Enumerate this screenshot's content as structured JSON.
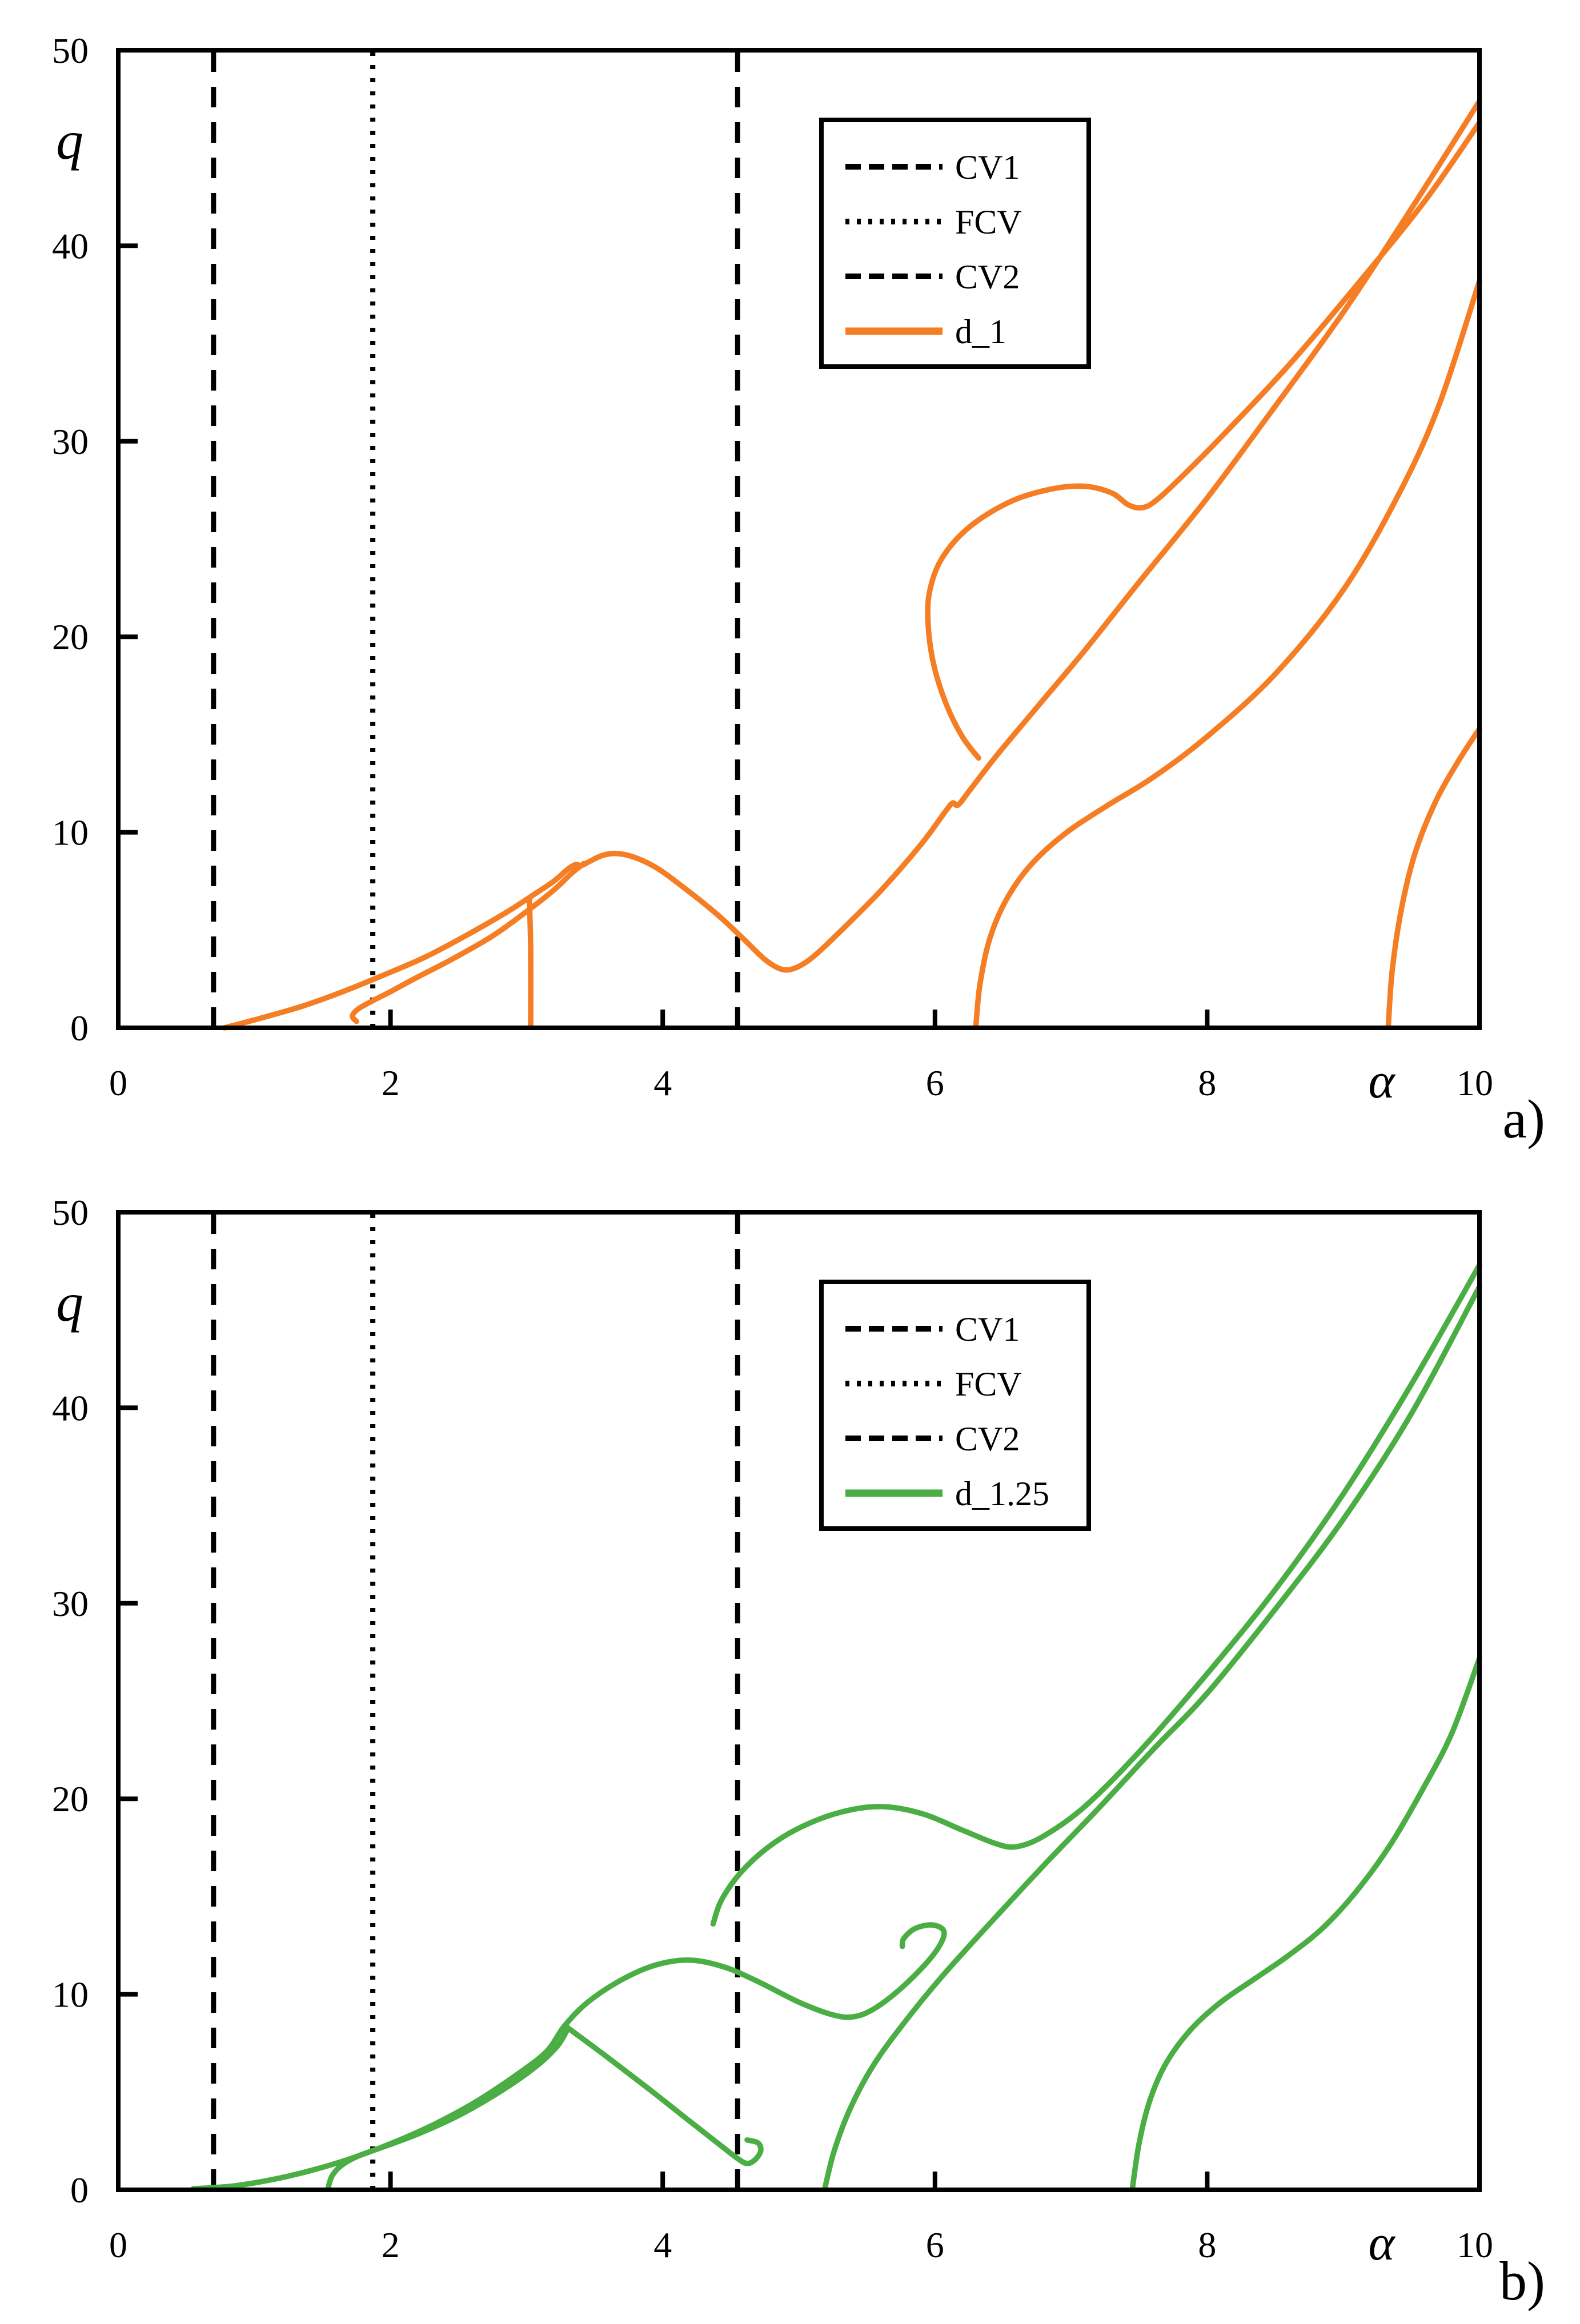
{
  "figure": {
    "background": "#ffffff",
    "axis_color": "#000000",
    "panels": [
      "a)",
      "b)"
    ]
  },
  "chart_data": [
    {
      "id": "panel-a",
      "type": "line",
      "panel_label": "a)",
      "xlabel": "α",
      "ylabel": "q",
      "xlim": [
        0,
        10
      ],
      "ylim": [
        0,
        50
      ],
      "xticks": [
        0,
        2,
        4,
        6,
        8,
        10
      ],
      "yticks": [
        0,
        10,
        20,
        30,
        40,
        50
      ],
      "grid": false,
      "legend_position": "upper center",
      "series_name": "d_1",
      "series_color": "#F57E25",
      "legend": [
        {
          "label": "CV1",
          "style": "dashed",
          "color": "#000000"
        },
        {
          "label": "FCV",
          "style": "dotted",
          "color": "#000000"
        },
        {
          "label": "CV2",
          "style": "dashed",
          "color": "#000000"
        },
        {
          "label": "d_1",
          "style": "solid",
          "color": "#F57E25"
        }
      ],
      "vertical_lines": [
        {
          "name": "CV1",
          "x": 0.7,
          "style": "dashed"
        },
        {
          "name": "FCV",
          "x": 1.87,
          "style": "dotted"
        },
        {
          "name": "CV2",
          "x": 4.55,
          "style": "dashed"
        }
      ],
      "branches": [
        {
          "name": "main-resonance-curve",
          "points": [
            [
              0.78,
              0
            ],
            [
              1.05,
              0.5
            ],
            [
              1.35,
              1.1
            ],
            [
              1.65,
              1.85
            ],
            [
              1.95,
              2.7
            ],
            [
              2.25,
              3.6
            ],
            [
              2.55,
              4.7
            ],
            [
              2.85,
              5.9
            ],
            [
              3.05,
              6.8
            ],
            [
              3.2,
              7.5
            ],
            [
              3.3,
              8.1
            ],
            [
              3.36,
              8.35
            ],
            [
              3.4,
              8.3
            ],
            [
              3.46,
              8.5
            ],
            [
              3.55,
              8.8
            ],
            [
              3.65,
              8.92
            ],
            [
              3.78,
              8.75
            ],
            [
              3.95,
              8.2
            ],
            [
              4.15,
              7.2
            ],
            [
              4.4,
              5.8
            ],
            [
              4.6,
              4.5
            ],
            [
              4.75,
              3.5
            ],
            [
              4.87,
              3.0
            ],
            [
              4.97,
              3.05
            ],
            [
              5.1,
              3.6
            ],
            [
              5.3,
              4.9
            ],
            [
              5.6,
              7.0
            ],
            [
              5.9,
              9.4
            ],
            [
              6.08,
              11.1
            ],
            [
              6.13,
              11.5
            ],
            [
              6.17,
              11.4
            ],
            [
              6.25,
              12.1
            ],
            [
              6.45,
              13.9
            ],
            [
              6.75,
              16.4
            ],
            [
              7.1,
              19.3
            ],
            [
              7.5,
              22.8
            ],
            [
              8.0,
              27.1
            ],
            [
              8.5,
              31.8
            ],
            [
              9.0,
              36.6
            ],
            [
              9.5,
              41.9
            ],
            [
              10,
              47.4
            ]
          ]
        },
        {
          "name": "lower-hook-strand",
          "points": [
            [
              1.75,
              0.33
            ],
            [
              1.72,
              0.6
            ],
            [
              1.76,
              0.95
            ],
            [
              1.86,
              1.35
            ],
            [
              2.0,
              1.85
            ],
            [
              2.2,
              2.6
            ],
            [
              2.45,
              3.5
            ],
            [
              2.75,
              4.7
            ],
            [
              3.0,
              5.95
            ],
            [
              3.2,
              7.05
            ],
            [
              3.33,
              7.9
            ],
            [
              3.42,
              8.4
            ]
          ]
        },
        {
          "name": "vertical-drop",
          "points": [
            [
              3.02,
              6.6
            ],
            [
              3.03,
              4.0
            ],
            [
              3.03,
              0.05
            ]
          ]
        },
        {
          "name": "bubble-loop-upper-diagonal",
          "points": [
            [
              6.32,
              13.8
            ],
            [
              6.2,
              14.9
            ],
            [
              6.08,
              16.6
            ],
            [
              5.99,
              18.6
            ],
            [
              5.95,
              20.6
            ],
            [
              5.96,
              22.3
            ],
            [
              6.05,
              24.0
            ],
            [
              6.25,
              25.6
            ],
            [
              6.55,
              26.9
            ],
            [
              6.85,
              27.55
            ],
            [
              7.1,
              27.7
            ],
            [
              7.3,
              27.35
            ],
            [
              7.42,
              26.75
            ],
            [
              7.52,
              26.6
            ],
            [
              7.62,
              26.95
            ],
            [
              7.8,
              28.1
            ],
            [
              8.1,
              30.2
            ],
            [
              8.6,
              33.9
            ],
            [
              9.1,
              38.0
            ],
            [
              9.6,
              42.3
            ],
            [
              10,
              46.3
            ]
          ]
        },
        {
          "name": "right-lower-branch",
          "points": [
            [
              6.3,
              0.05
            ],
            [
              6.33,
              2.2
            ],
            [
              6.4,
              4.5
            ],
            [
              6.52,
              6.5
            ],
            [
              6.7,
              8.3
            ],
            [
              6.95,
              9.9
            ],
            [
              7.25,
              11.3
            ],
            [
              7.6,
              12.8
            ],
            [
              8.0,
              14.9
            ],
            [
              8.5,
              18.1
            ],
            [
              9.0,
              22.4
            ],
            [
              9.4,
              27.2
            ],
            [
              9.7,
              31.8
            ],
            [
              10,
              38.2
            ]
          ]
        },
        {
          "name": "far-right-branch",
          "points": [
            [
              9.33,
              0.05
            ],
            [
              9.36,
              3.0
            ],
            [
              9.43,
              6.2
            ],
            [
              9.53,
              9.0
            ],
            [
              9.68,
              11.6
            ],
            [
              9.85,
              13.7
            ],
            [
              10,
              15.3
            ]
          ]
        }
      ]
    },
    {
      "id": "panel-b",
      "type": "line",
      "panel_label": "b)",
      "xlabel": "α",
      "ylabel": "q",
      "xlim": [
        0,
        10
      ],
      "ylim": [
        0,
        50
      ],
      "xticks": [
        0,
        2,
        4,
        6,
        8,
        10
      ],
      "yticks": [
        0,
        10,
        20,
        30,
        40,
        50
      ],
      "grid": false,
      "legend_position": "upper center",
      "series_name": "d_1.25",
      "series_color": "#4BAE44",
      "legend": [
        {
          "label": "CV1",
          "style": "dashed",
          "color": "#000000"
        },
        {
          "label": "FCV",
          "style": "dotted",
          "color": "#000000"
        },
        {
          "label": "CV2",
          "style": "dashed",
          "color": "#000000"
        },
        {
          "label": "d_1.25",
          "style": "solid",
          "color": "#4BAE44"
        }
      ],
      "vertical_lines": [
        {
          "name": "CV1",
          "x": 0.7,
          "style": "dashed"
        },
        {
          "name": "FCV",
          "x": 1.87,
          "style": "dotted"
        },
        {
          "name": "CV2",
          "x": 4.55,
          "style": "dashed"
        }
      ],
      "branches": [
        {
          "name": "main-curve-dome-fishhook",
          "points": [
            [
              0.55,
              0.05
            ],
            [
              0.85,
              0.2
            ],
            [
              1.15,
              0.55
            ],
            [
              1.45,
              1.05
            ],
            [
              1.75,
              1.7
            ],
            [
              2.05,
              2.5
            ],
            [
              2.35,
              3.45
            ],
            [
              2.65,
              4.6
            ],
            [
              2.95,
              6.0
            ],
            [
              3.15,
              7.1
            ],
            [
              3.28,
              8.4
            ],
            [
              3.45,
              9.6
            ],
            [
              3.7,
              10.75
            ],
            [
              3.95,
              11.5
            ],
            [
              4.2,
              11.75
            ],
            [
              4.45,
              11.4
            ],
            [
              4.7,
              10.65
            ],
            [
              5.0,
              9.6
            ],
            [
              5.25,
              8.95
            ],
            [
              5.4,
              8.85
            ],
            [
              5.55,
              9.25
            ],
            [
              5.75,
              10.3
            ],
            [
              5.95,
              11.7
            ],
            [
              6.05,
              12.7
            ],
            [
              6.06,
              13.3
            ],
            [
              5.97,
              13.55
            ],
            [
              5.85,
              13.35
            ],
            [
              5.77,
              12.85
            ],
            [
              5.76,
              12.45
            ]
          ]
        },
        {
          "name": "second-rising-strand",
          "points": [
            [
              1.54,
              0.05
            ],
            [
              1.57,
              0.7
            ],
            [
              1.64,
              1.25
            ],
            [
              1.76,
              1.72
            ],
            [
              1.95,
              2.2
            ],
            [
              2.2,
              2.85
            ],
            [
              2.5,
              3.8
            ],
            [
              2.8,
              5.0
            ],
            [
              3.05,
              6.2
            ],
            [
              3.22,
              7.3
            ],
            [
              3.3,
              8.2
            ]
          ]
        },
        {
          "name": "declining-strand-with-hook",
          "points": [
            [
              3.3,
              8.3
            ],
            [
              3.6,
              6.75
            ],
            [
              3.9,
              5.15
            ],
            [
              4.2,
              3.5
            ],
            [
              4.42,
              2.3
            ],
            [
              4.55,
              1.6
            ],
            [
              4.62,
              1.35
            ],
            [
              4.68,
              1.55
            ],
            [
              4.72,
              2.0
            ],
            [
              4.7,
              2.4
            ],
            [
              4.62,
              2.55
            ]
          ]
        },
        {
          "name": "upper-arc-diagonal",
          "points": [
            [
              4.37,
              13.6
            ],
            [
              4.43,
              14.8
            ],
            [
              4.57,
              16.2
            ],
            [
              4.77,
              17.5
            ],
            [
              5.0,
              18.5
            ],
            [
              5.3,
              19.3
            ],
            [
              5.6,
              19.6
            ],
            [
              5.9,
              19.25
            ],
            [
              6.2,
              18.4
            ],
            [
              6.45,
              17.7
            ],
            [
              6.6,
              17.55
            ],
            [
              6.8,
              18.1
            ],
            [
              7.1,
              19.6
            ],
            [
              7.5,
              22.4
            ],
            [
              8.0,
              26.4
            ],
            [
              8.5,
              30.7
            ],
            [
              9.0,
              35.6
            ],
            [
              9.5,
              41.2
            ],
            [
              10,
              47.3
            ]
          ]
        },
        {
          "name": "lower-diagonal-branch",
          "points": [
            [
              5.19,
              0.05
            ],
            [
              5.26,
              2.0
            ],
            [
              5.38,
              4.2
            ],
            [
              5.55,
              6.4
            ],
            [
              5.78,
              8.6
            ],
            [
              6.05,
              10.9
            ],
            [
              6.4,
              13.6
            ],
            [
              6.8,
              16.6
            ],
            [
              7.2,
              19.5
            ],
            [
              7.6,
              22.5
            ],
            [
              8.0,
              25.4
            ],
            [
              8.5,
              29.7
            ],
            [
              9.0,
              34.3
            ],
            [
              9.5,
              39.7
            ],
            [
              10,
              46.2
            ]
          ]
        },
        {
          "name": "far-right-s-branch",
          "points": [
            [
              7.45,
              0.05
            ],
            [
              7.5,
              2.4
            ],
            [
              7.58,
              4.6
            ],
            [
              7.7,
              6.5
            ],
            [
              7.88,
              8.2
            ],
            [
              8.1,
              9.6
            ],
            [
              8.35,
              10.8
            ],
            [
              8.6,
              12.0
            ],
            [
              8.85,
              13.4
            ],
            [
              9.1,
              15.3
            ],
            [
              9.35,
              17.7
            ],
            [
              9.6,
              20.7
            ],
            [
              9.8,
              23.4
            ],
            [
              10,
              27.2
            ]
          ]
        }
      ]
    }
  ]
}
